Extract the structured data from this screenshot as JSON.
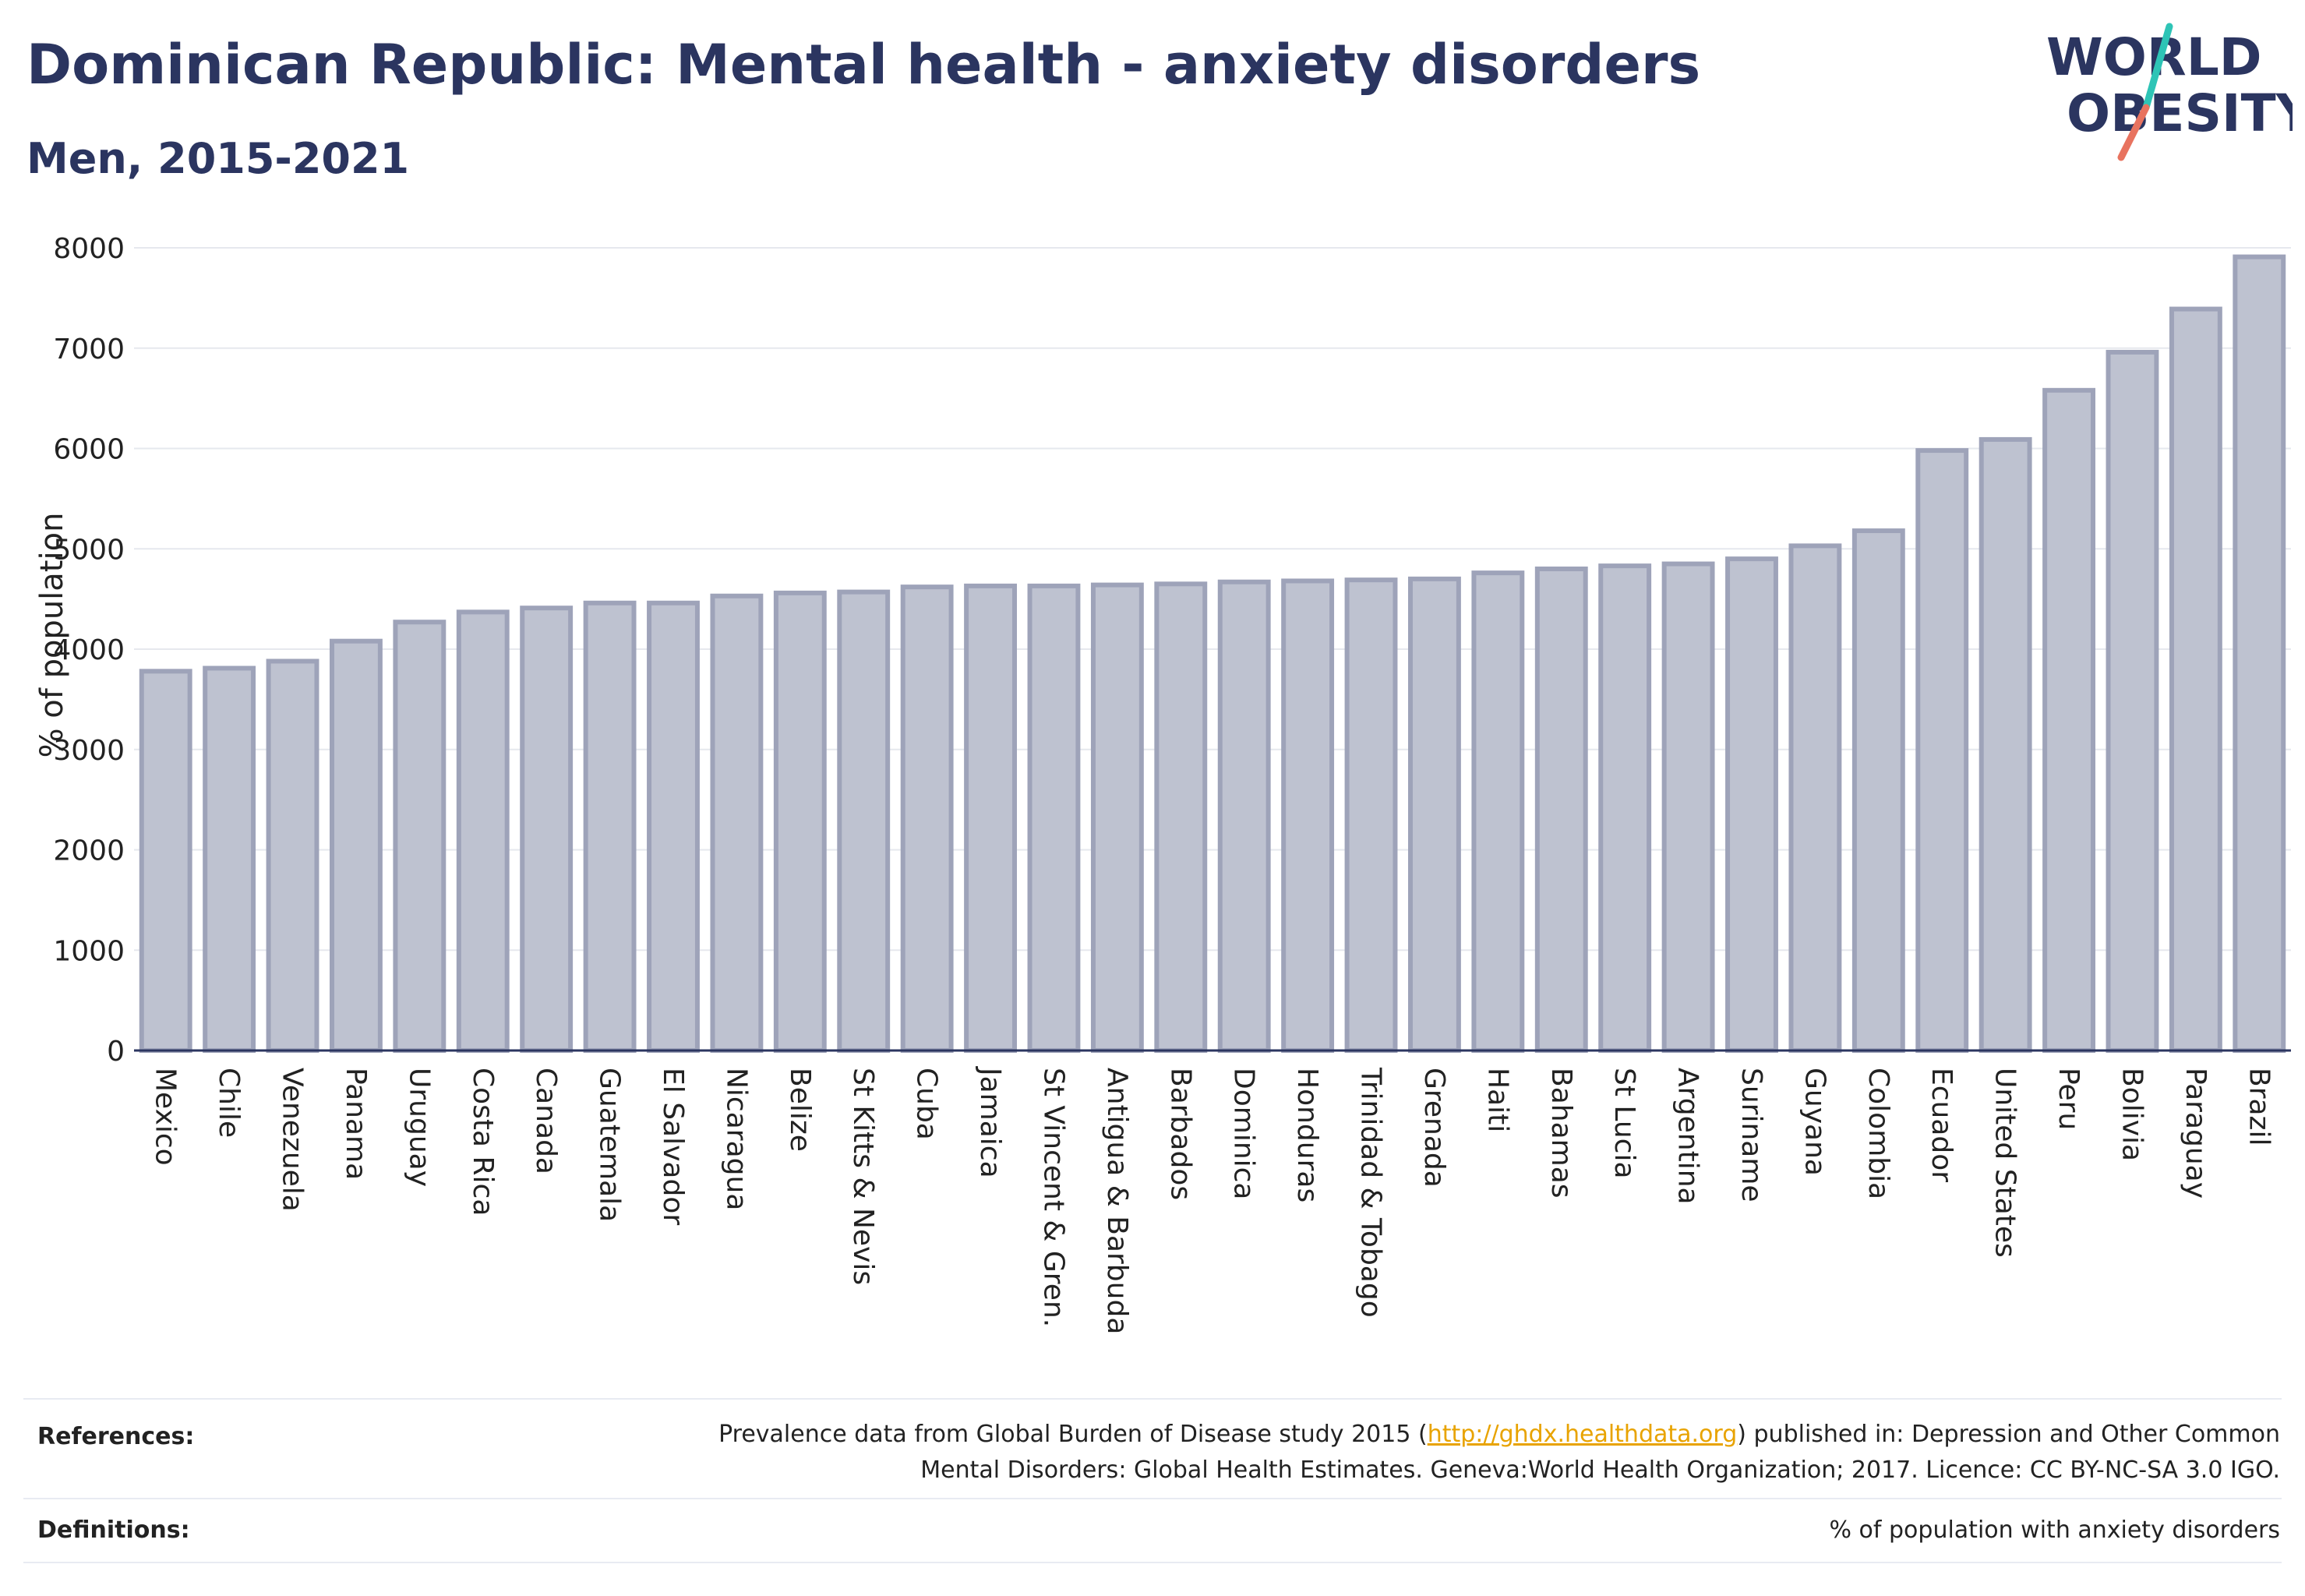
{
  "header": {
    "title": "Dominican Republic: Mental health - anxiety disorders",
    "subtitle": "Men, 2015-2021"
  },
  "logo": {
    "line1": "WORLD",
    "line2": "OBESITY"
  },
  "chart_data": {
    "type": "bar",
    "title": "Dominican Republic: Mental health - anxiety disorders",
    "subtitle": "Men, 2015-2021",
    "xlabel": "",
    "ylabel": "% of population",
    "ylim": [
      0,
      8000
    ],
    "yticks": [
      0,
      1000,
      2000,
      3000,
      4000,
      5000,
      6000,
      7000,
      8000
    ],
    "grid": true,
    "legend": "none",
    "bar_color": "#bec2d0",
    "bar_edge_color": "#9ea3b9",
    "categories": [
      "Mexico",
      "Chile",
      "Venezuela",
      "Panama",
      "Uruguay",
      "Costa Rica",
      "Canada",
      "Guatemala",
      "El Salvador",
      "Nicaragua",
      "Belize",
      "St Kitts & Nevis",
      "Cuba",
      "Jamaica",
      "St Vincent & Gren.",
      "Antigua & Barbuda",
      "Barbados",
      "Dominica",
      "Honduras",
      "Trinidad & Tobago",
      "Grenada",
      "Haiti",
      "Bahamas",
      "St Lucia",
      "Argentina",
      "Suriname",
      "Guyana",
      "Colombia",
      "Ecuador",
      "United States",
      "Peru",
      "Bolivia",
      "Paraguay",
      "Brazil"
    ],
    "values": [
      3780,
      3810,
      3880,
      4080,
      4270,
      4370,
      4410,
      4460,
      4460,
      4530,
      4560,
      4570,
      4620,
      4630,
      4630,
      4640,
      4650,
      4670,
      4680,
      4690,
      4700,
      4760,
      4800,
      4830,
      4850,
      4900,
      5030,
      5180,
      5980,
      6090,
      6580,
      6960,
      7390,
      7910
    ]
  },
  "footer": {
    "references_label": "References:",
    "references_line1_pre": "Prevalence data from Global Burden of Disease study 2015 (",
    "references_link": "http://ghdx.healthdata.org",
    "references_line1_post": ") published in: Depression and Other Common",
    "references_line2": "Mental Disorders: Global Health Estimates. Geneva:World Health Organization; 2017. Licence: CC BY-NC-SA 3.0 IGO.",
    "definitions_label": "Definitions:",
    "definitions_text": "% of population with anxiety disorders"
  }
}
